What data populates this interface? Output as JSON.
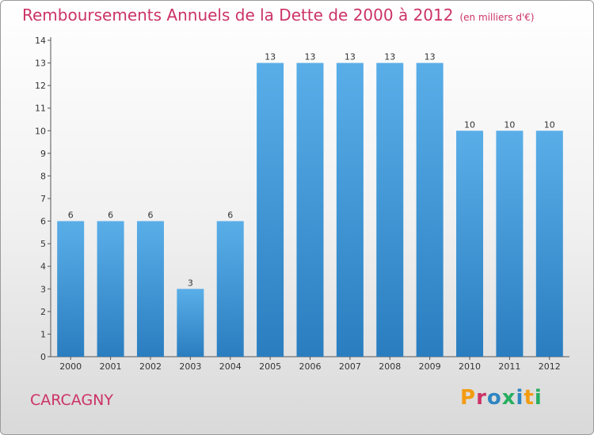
{
  "chart_data": {
    "type": "bar",
    "title": "Remboursements Annuels de la Dette de 2000 à 2012",
    "subtitle": "(en milliers d'€)",
    "categories": [
      "2000",
      "2001",
      "2002",
      "2003",
      "2004",
      "2005",
      "2006",
      "2007",
      "2008",
      "2009",
      "2010",
      "2011",
      "2012"
    ],
    "values": [
      6,
      6,
      6,
      3,
      6,
      13,
      13,
      13,
      13,
      13,
      10,
      10,
      10
    ],
    "ylim": [
      0,
      14
    ],
    "yticks": [
      0,
      1,
      2,
      3,
      4,
      5,
      6,
      7,
      8,
      9,
      10,
      11,
      12,
      13,
      14
    ],
    "grid": false,
    "bar_color": "#4a9ee0"
  },
  "footer": {
    "city": "CARCAGNY",
    "logo": "Proxiti",
    "logo_colors": [
      "#f39c12",
      "#cc3366",
      "#2e86c1",
      "#27ae60",
      "#2e86c1",
      "#f39c12",
      "#27ae60"
    ]
  },
  "colors": {
    "accent": "#cc3366"
  }
}
